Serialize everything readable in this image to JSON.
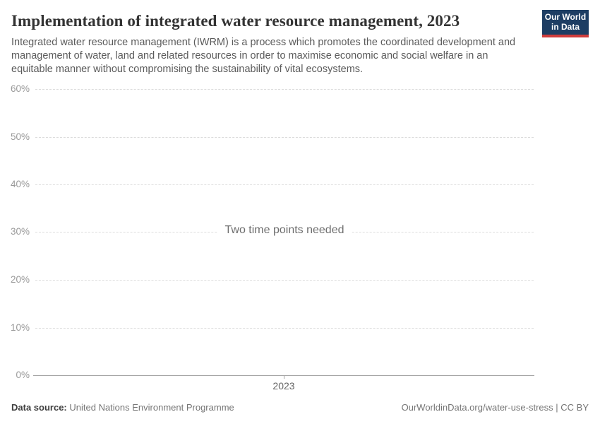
{
  "header": {
    "title": "Implementation of integrated water resource management, 2023",
    "subtitle": "Integrated water resource management (IWRM) is a process which promotes the coordinated development and management of water, land and related resources in order to maximise economic and social welfare in an equitable manner without compromising the sustainability of vital ecosystems.",
    "logo": {
      "line1": "Our World",
      "line2": "in Data",
      "bg_color": "#1d3d63",
      "accent_color": "#cf3c3c"
    }
  },
  "chart_data": {
    "type": "line",
    "title": "Implementation of integrated water resource management, 2023",
    "series": [],
    "empty_message": "Two time points needed",
    "xlabel": "",
    "ylabel": "",
    "ylim": [
      0,
      60
    ],
    "yticks_top_to_bottom": [
      "60%",
      "50%",
      "40%",
      "30%",
      "20%",
      "10%",
      "0%"
    ],
    "xticks": [
      "2023"
    ],
    "grid": "horizontal dashed gridlines, solid baseline at 0%"
  },
  "footer": {
    "datasource_label": "Data source:",
    "datasource_value": "United Nations Environment Programme",
    "attribution": "OurWorldinData.org/water-use-stress | CC BY"
  }
}
